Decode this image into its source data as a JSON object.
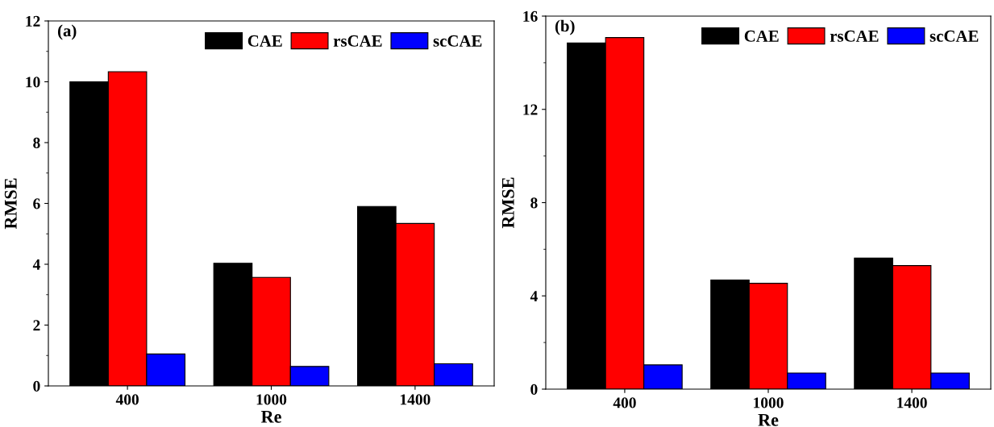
{
  "chart_data": [
    {
      "type": "bar",
      "xlabel": "Re",
      "ylabel": "RMSE",
      "annotations": [
        "(a)"
      ],
      "categories": [
        "400",
        "1000",
        "1400"
      ],
      "ylim": [
        0,
        12
      ],
      "yticks": [
        0,
        2,
        4,
        6,
        8,
        10,
        12
      ],
      "legend": "top right",
      "series": [
        {
          "name": "CAE",
          "color": "#000000",
          "values": [
            10.0,
            4.03,
            5.9
          ]
        },
        {
          "name": "rsCAE",
          "color": "#ff0000",
          "values": [
            10.33,
            3.57,
            5.34
          ]
        },
        {
          "name": "scCAE",
          "color": "#0000ff",
          "values": [
            1.05,
            0.64,
            0.73
          ]
        }
      ]
    },
    {
      "type": "bar",
      "xlabel": "Re",
      "ylabel": "RMSE",
      "annotations": [
        "(b)"
      ],
      "categories": [
        "400",
        "1000",
        "1400"
      ],
      "ylim": [
        0,
        16
      ],
      "yticks": [
        0,
        4,
        8,
        12,
        16
      ],
      "legend": "top right",
      "series": [
        {
          "name": "CAE",
          "color": "#000000",
          "values": [
            14.85,
            4.68,
            5.62
          ]
        },
        {
          "name": "rsCAE",
          "color": "#ff0000",
          "values": [
            15.08,
            4.54,
            5.3
          ]
        },
        {
          "name": "scCAE",
          "color": "#0000ff",
          "values": [
            1.04,
            0.69,
            0.69
          ]
        }
      ]
    }
  ]
}
